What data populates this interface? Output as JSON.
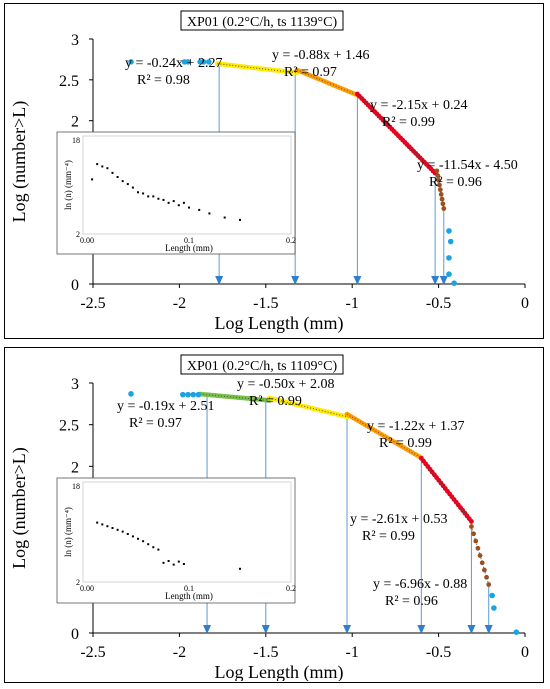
{
  "chart_data": [
    {
      "type": "scatter",
      "title": "XP01 (0.2°C/h, ts 1139°C)",
      "xlabel": "Log Length (mm)",
      "ylabel": "Log (number>L)",
      "xlim": [
        -2.5,
        0
      ],
      "ylim": [
        0,
        3
      ],
      "xticks": [
        "-2.5",
        "-2",
        "-1.5",
        "-1",
        "-0.5",
        "0"
      ],
      "yticks": [
        "0",
        "0.5",
        "1",
        "1.5",
        "2",
        "2.5",
        "3"
      ],
      "grid": false,
      "colors": {
        "outlier": "#1ba3e0",
        "seg1": "#ffeb00",
        "seg2": "#ff9c00",
        "seg3": "#e8001c",
        "seg4": "#a0521e",
        "line": "#5b9bd5"
      },
      "outliers": [
        {
          "x": -2.28,
          "y": 2.72
        },
        {
          "x": -1.97,
          "y": 2.72
        },
        {
          "x": -1.95,
          "y": 2.72
        },
        {
          "x": -1.88,
          "y": 2.72
        },
        {
          "x": -1.86,
          "y": 2.72
        },
        {
          "x": -1.83,
          "y": 2.72
        },
        {
          "x": -0.44,
          "y": 0.65
        },
        {
          "x": -0.43,
          "y": 0.52
        },
        {
          "x": -0.44,
          "y": 0.32
        },
        {
          "x": -0.44,
          "y": 0.12
        },
        {
          "x": -0.41,
          "y": 0.01
        }
      ],
      "segments": [
        {
          "slope": -0.24,
          "intercept": 2.27,
          "range": [
            -1.78,
            -1.32
          ],
          "color": "seg1",
          "equation": "y = -0.24x + 2.27",
          "r2": "R² = 0.98"
        },
        {
          "slope": -0.88,
          "intercept": 1.46,
          "range": [
            -1.32,
            -0.97
          ],
          "color": "seg2",
          "equation": "y = -0.88x + 1.46",
          "r2": "R² = 0.97"
        },
        {
          "slope": -2.15,
          "intercept": 0.24,
          "range": [
            -0.97,
            -0.52
          ],
          "color": "seg3",
          "equation": "y = -2.15x + 0.24",
          "r2": "R² = 0.99"
        },
        {
          "slope": -11.54,
          "intercept": -4.5,
          "range": [
            -0.51,
            -0.47
          ],
          "color": "seg4",
          "equation": "y = -11.54x - 4.50",
          "r2": "R² = 0.96"
        }
      ],
      "breakpoints": [
        {
          "x": -1.77,
          "y": 2.72
        },
        {
          "x": -1.33,
          "y": 2.6
        },
        {
          "x": -0.97,
          "y": 2.3
        },
        {
          "x": -0.52,
          "y": 1.3
        },
        {
          "x": -0.47,
          "y": 0.98
        }
      ],
      "inset": {
        "xlabel": "Length (mm)",
        "ylabel": "ln (n) (mm⁻⁴)",
        "xticks": [
          "0.00",
          "0.1",
          "0.2"
        ],
        "yticks": [
          "2",
          "18"
        ],
        "xlim": [
          0,
          0.2
        ],
        "ylim": [
          2,
          18
        ],
        "points": [
          {
            "x": 0.005,
            "y": 11.3
          },
          {
            "x": 0.01,
            "y": 13.9
          },
          {
            "x": 0.015,
            "y": 13.5
          },
          {
            "x": 0.02,
            "y": 13.2
          },
          {
            "x": 0.025,
            "y": 12.4
          },
          {
            "x": 0.03,
            "y": 11.7
          },
          {
            "x": 0.035,
            "y": 11.0
          },
          {
            "x": 0.04,
            "y": 10.5
          },
          {
            "x": 0.045,
            "y": 9.9
          },
          {
            "x": 0.05,
            "y": 9.1
          },
          {
            "x": 0.055,
            "y": 8.9
          },
          {
            "x": 0.06,
            "y": 8.4
          },
          {
            "x": 0.065,
            "y": 8.4
          },
          {
            "x": 0.07,
            "y": 8.0
          },
          {
            "x": 0.075,
            "y": 7.8
          },
          {
            "x": 0.08,
            "y": 7.3
          },
          {
            "x": 0.085,
            "y": 7.6
          },
          {
            "x": 0.09,
            "y": 6.9
          },
          {
            "x": 0.095,
            "y": 7.3
          },
          {
            "x": 0.1,
            "y": 6.5
          },
          {
            "x": 0.11,
            "y": 6.1
          },
          {
            "x": 0.12,
            "y": 5.5
          },
          {
            "x": 0.135,
            "y": 4.8
          },
          {
            "x": 0.15,
            "y": 4.4
          }
        ]
      }
    },
    {
      "type": "scatter",
      "title": "XP01 (0.2°C/h, ts 1109°C)",
      "xlabel": "Log Length (mm)",
      "ylabel": "Log (number>L)",
      "xlim": [
        -2.5,
        0
      ],
      "ylim": [
        0,
        3
      ],
      "xticks": [
        "-2.5",
        "-2",
        "-1.5",
        "-1",
        "-0.5",
        "0"
      ],
      "yticks": [
        "0",
        "0.5",
        "1",
        "1.5",
        "2",
        "2.5",
        "3"
      ],
      "grid": false,
      "colors": {
        "outlier": "#1ba3e0",
        "seg1": "#76c043",
        "seg2": "#ffeb00",
        "seg3": "#ff9c00",
        "seg4": "#e8001c",
        "seg5": "#a0521e",
        "line": "#5b9bd5"
      },
      "outliers": [
        {
          "x": -2.28,
          "y": 2.87
        },
        {
          "x": -1.98,
          "y": 2.86
        },
        {
          "x": -1.95,
          "y": 2.86
        },
        {
          "x": -1.92,
          "y": 2.86
        },
        {
          "x": -1.89,
          "y": 2.86
        },
        {
          "x": -0.19,
          "y": 0.45
        },
        {
          "x": -0.18,
          "y": 0.3
        },
        {
          "x": -0.05,
          "y": 0.01
        }
      ],
      "segments": [
        {
          "slope": -0.19,
          "intercept": 2.51,
          "range": [
            -1.88,
            -1.48
          ],
          "color": "seg1",
          "equation": "y = -0.19x + 2.51",
          "r2": "R² = 0.97"
        },
        {
          "slope": -0.5,
          "intercept": 2.08,
          "range": [
            -1.48,
            -1.03
          ],
          "color": "seg2",
          "equation": "y = -0.50x + 2.08",
          "r2": "R² = 0.99"
        },
        {
          "slope": -1.22,
          "intercept": 1.37,
          "range": [
            -1.03,
            -0.6
          ],
          "color": "seg3",
          "equation": "y = -1.22x + 1.37",
          "r2": "R² = 0.99"
        },
        {
          "slope": -2.61,
          "intercept": 0.53,
          "range": [
            -0.6,
            -0.31
          ],
          "color": "seg4",
          "equation": "y = -2.61x + 0.53",
          "r2": "R² = 0.99"
        },
        {
          "slope": -6.96,
          "intercept": -0.88,
          "range": [
            -0.31,
            -0.21
          ],
          "color": "seg5",
          "equation": "y = -6.96x - 0.88",
          "r2": "R² = 0.96"
        }
      ],
      "breakpoints": [
        {
          "x": -1.84,
          "y": 2.86
        },
        {
          "x": -1.5,
          "y": 2.82
        },
        {
          "x": -1.03,
          "y": 2.6
        },
        {
          "x": -0.6,
          "y": 2.1
        },
        {
          "x": -0.31,
          "y": 1.35
        },
        {
          "x": -0.21,
          "y": 0.6
        }
      ],
      "inset": {
        "xlabel": "Length (mm)",
        "ylabel": "ln (n) (mm⁻⁴)",
        "xticks": [
          "0.00",
          "0.1",
          "0.2"
        ],
        "yticks": [
          "2",
          "18"
        ],
        "xlim": [
          0,
          0.2
        ],
        "ylim": [
          2,
          18
        ],
        "points": [
          {
            "x": 0.01,
            "y": 11.9
          },
          {
            "x": 0.015,
            "y": 11.6
          },
          {
            "x": 0.02,
            "y": 11.3
          },
          {
            "x": 0.025,
            "y": 11.0
          },
          {
            "x": 0.03,
            "y": 10.7
          },
          {
            "x": 0.035,
            "y": 10.4
          },
          {
            "x": 0.04,
            "y": 10.0
          },
          {
            "x": 0.045,
            "y": 9.6
          },
          {
            "x": 0.05,
            "y": 9.2
          },
          {
            "x": 0.055,
            "y": 8.8
          },
          {
            "x": 0.06,
            "y": 8.3
          },
          {
            "x": 0.065,
            "y": 7.8
          },
          {
            "x": 0.07,
            "y": 7.4
          },
          {
            "x": 0.075,
            "y": 5.2
          },
          {
            "x": 0.08,
            "y": 5.5
          },
          {
            "x": 0.085,
            "y": 4.9
          },
          {
            "x": 0.09,
            "y": 5.4
          },
          {
            "x": 0.095,
            "y": 5.0
          },
          {
            "x": 0.15,
            "y": 4.2
          }
        ]
      }
    }
  ]
}
